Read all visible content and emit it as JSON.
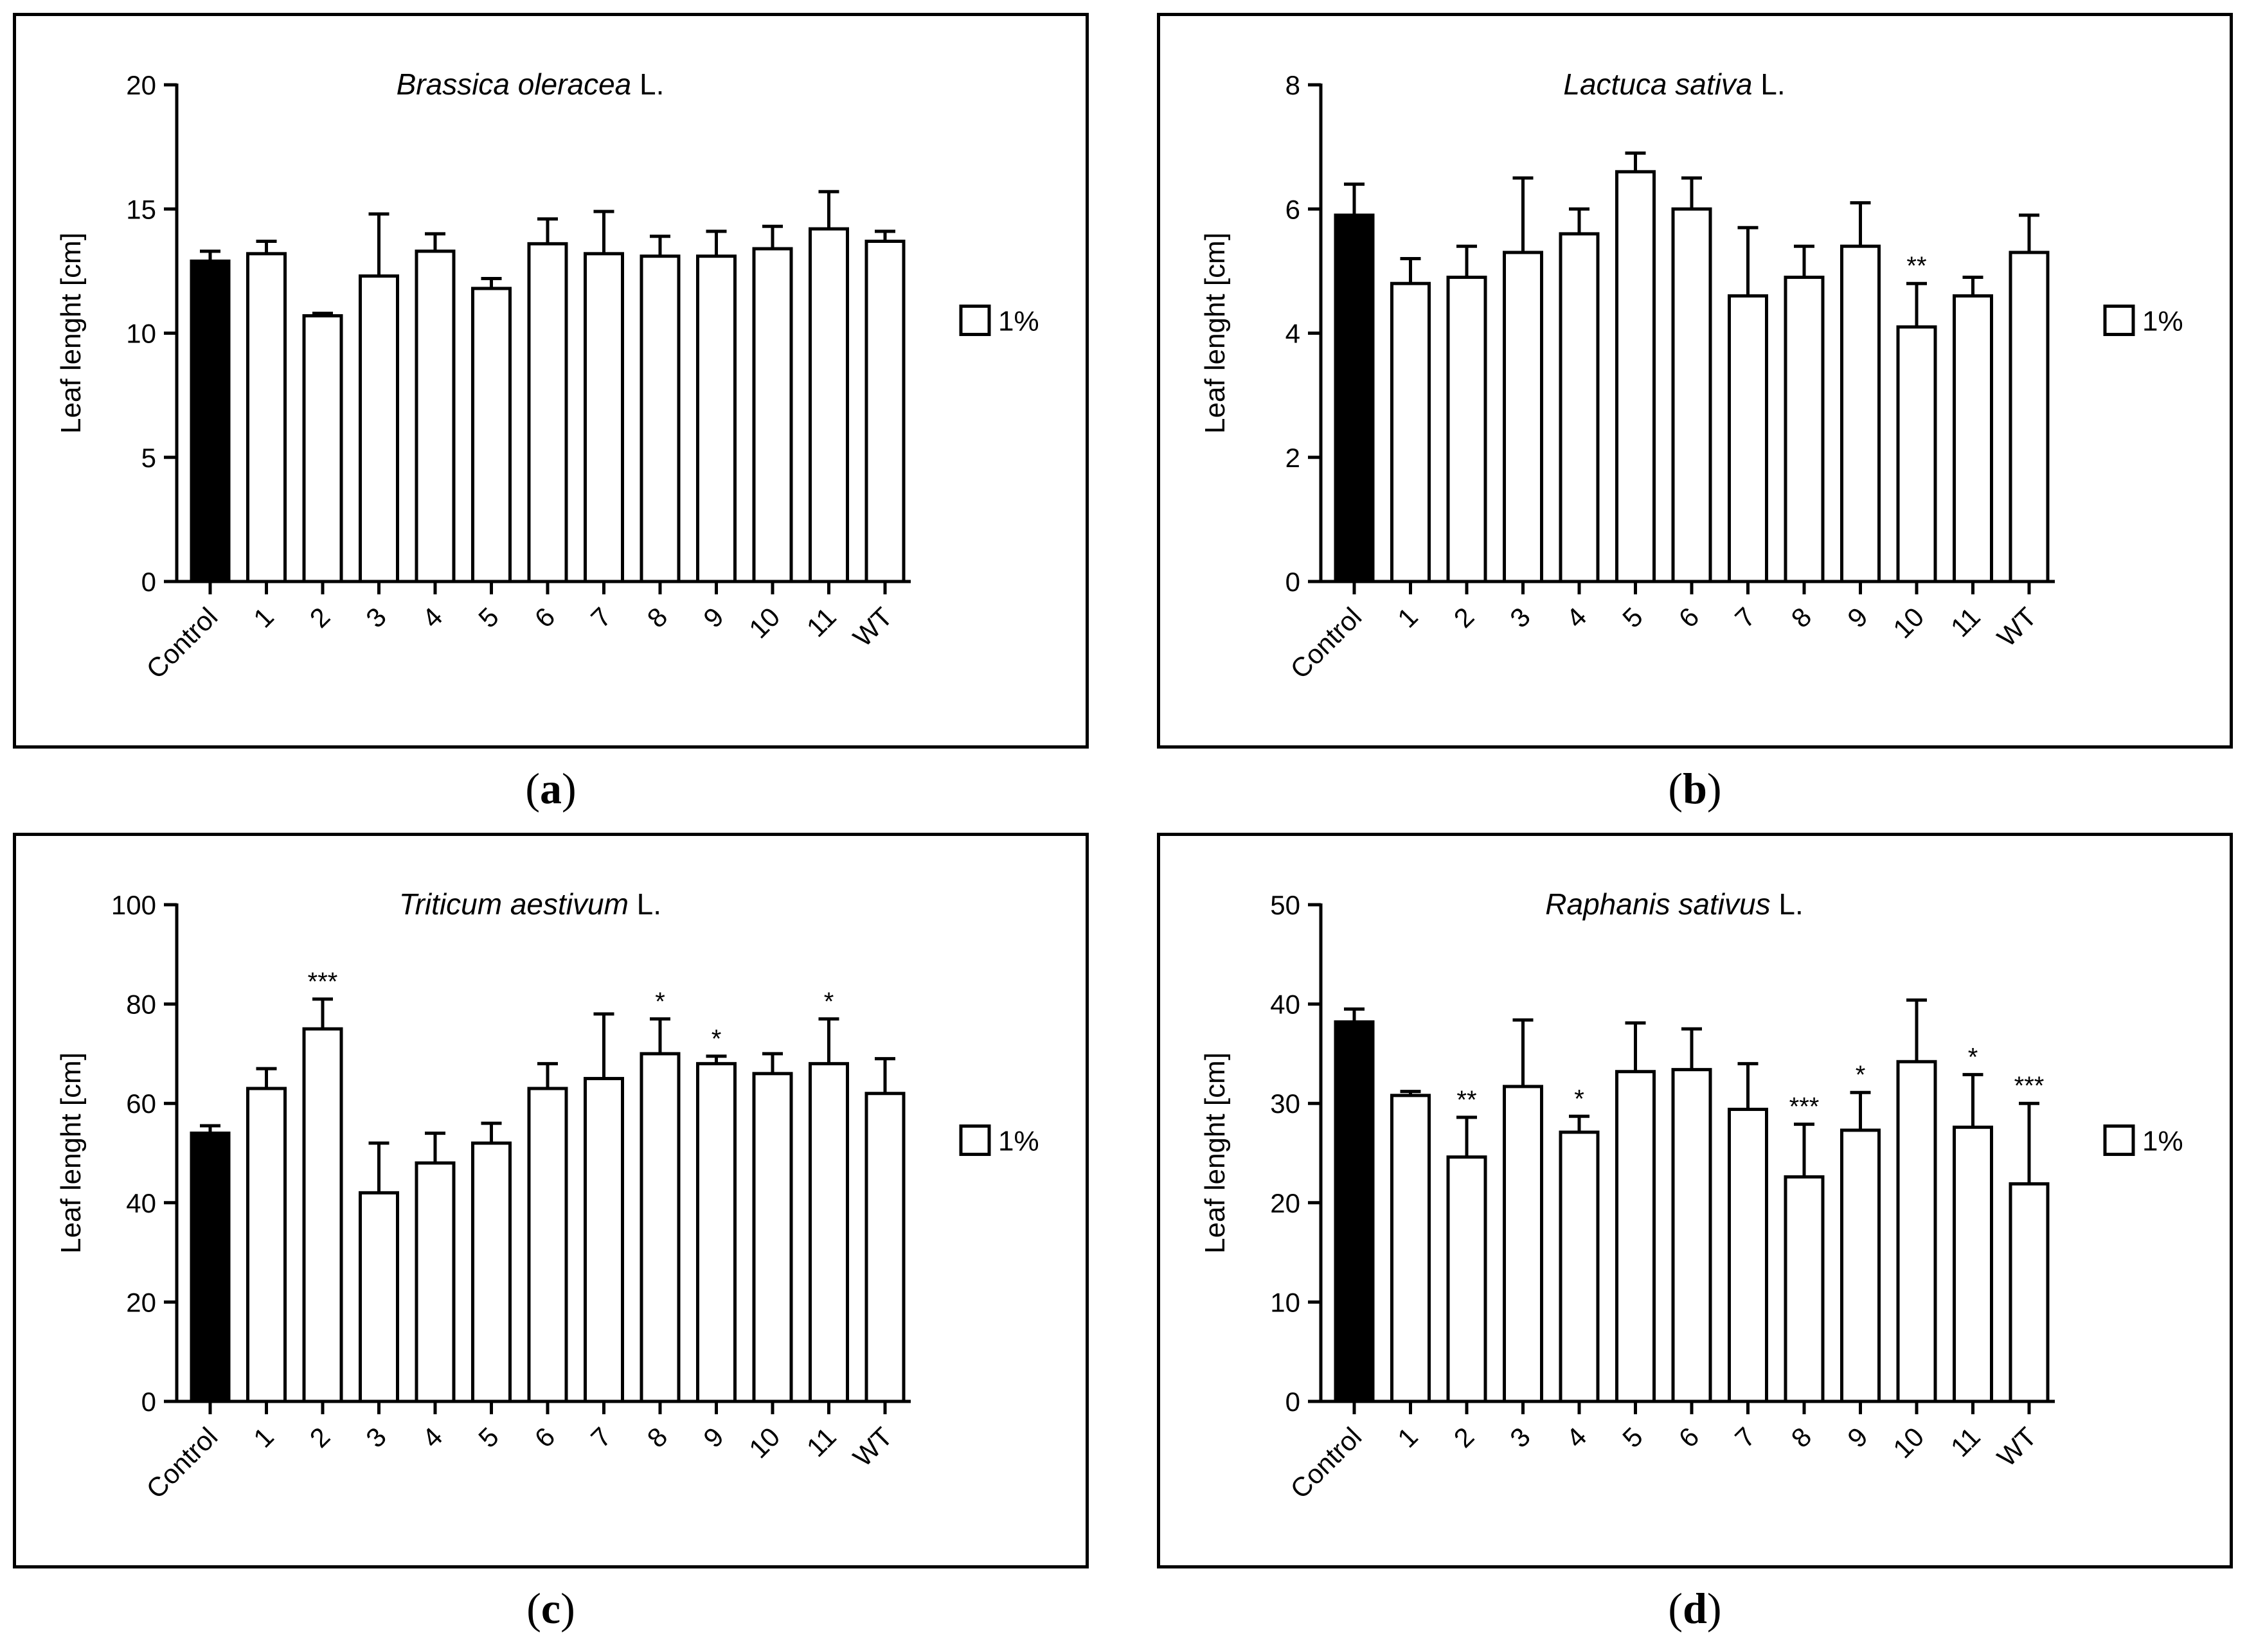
{
  "legend_label": "1%",
  "colors": {
    "control_fill": "#000000",
    "treatment_fill": "#ffffff",
    "stroke": "#000000"
  },
  "captions": [
    "a",
    "b",
    "c",
    "d"
  ],
  "chart_data": [
    {
      "type": "bar",
      "panel": "a",
      "title": "Brassica oleracea",
      "title_author": "L.",
      "ylabel": "Leaf lenght [cm]",
      "xlabel": "",
      "legend": "1%",
      "ylim": [
        0,
        20
      ],
      "yticks": [
        0,
        5,
        10,
        15,
        20
      ],
      "categories": [
        "Control",
        "1",
        "2",
        "3",
        "4",
        "5",
        "6",
        "7",
        "8",
        "9",
        "10",
        "11",
        "WT"
      ],
      "values": [
        12.9,
        13.2,
        10.7,
        12.3,
        13.3,
        11.8,
        13.6,
        13.2,
        13.1,
        13.1,
        13.4,
        14.2,
        13.7
      ],
      "errors": [
        0.4,
        0.5,
        0.1,
        2.5,
        0.7,
        0.4,
        1.0,
        1.7,
        0.8,
        1.0,
        0.9,
        1.5,
        0.4
      ],
      "significance": [
        "",
        "",
        "",
        "",
        "",
        "",
        "",
        "",
        "",
        "",
        "",
        "",
        ""
      ]
    },
    {
      "type": "bar",
      "panel": "b",
      "title": "Lactuca sativa",
      "title_author": "L.",
      "ylabel": "Leaf lenght [cm]",
      "xlabel": "",
      "legend": "1%",
      "ylim": [
        0,
        8
      ],
      "yticks": [
        0,
        2,
        4,
        6,
        8
      ],
      "categories": [
        "Control",
        "1",
        "2",
        "3",
        "4",
        "5",
        "6",
        "7",
        "8",
        "9",
        "10",
        "11",
        "WT"
      ],
      "values": [
        5.9,
        4.8,
        4.9,
        5.3,
        5.6,
        6.6,
        6.0,
        4.6,
        4.9,
        5.4,
        4.1,
        4.6,
        5.3
      ],
      "errors": [
        0.5,
        0.4,
        0.5,
        1.2,
        0.4,
        0.3,
        0.5,
        1.1,
        0.5,
        0.7,
        0.7,
        0.3,
        0.6
      ],
      "significance": [
        "",
        "",
        "",
        "",
        "",
        "",
        "",
        "",
        "",
        "",
        "**",
        "",
        ""
      ]
    },
    {
      "type": "bar",
      "panel": "c",
      "title": "Triticum aestivum",
      "title_author": "L.",
      "ylabel": "Leaf lenght [cm]",
      "xlabel": "",
      "legend": "1%",
      "ylim": [
        0,
        100
      ],
      "yticks": [
        0,
        20,
        40,
        60,
        80,
        100
      ],
      "categories": [
        "Control",
        "1",
        "2",
        "3",
        "4",
        "5",
        "6",
        "7",
        "8",
        "9",
        "10",
        "11",
        "WT"
      ],
      "values": [
        54,
        63,
        75,
        42,
        48,
        52,
        63,
        65,
        70,
        68,
        66,
        68,
        62
      ],
      "errors": [
        1.5,
        4,
        6,
        10,
        6,
        4,
        5,
        13,
        7,
        1.5,
        4,
        9,
        7
      ],
      "significance": [
        "",
        "",
        "***",
        "",
        "",
        "",
        "",
        "",
        "*",
        "*",
        "",
        "*",
        ""
      ]
    },
    {
      "type": "bar",
      "panel": "d",
      "title": "Raphanis sativus",
      "title_author": "L.",
      "ylabel": "Leaf lenght [cm]",
      "xlabel": "",
      "legend": "1%",
      "ylim": [
        0,
        50
      ],
      "yticks": [
        0,
        10,
        20,
        30,
        40,
        50
      ],
      "categories": [
        "Control",
        "1",
        "2",
        "3",
        "4",
        "5",
        "6",
        "7",
        "8",
        "9",
        "10",
        "11",
        "WT"
      ],
      "values": [
        38.2,
        30.8,
        24.6,
        31.7,
        27.1,
        33.2,
        33.4,
        29.4,
        22.6,
        27.3,
        34.2,
        27.6,
        21.9
      ],
      "errors": [
        1.3,
        0.4,
        4.0,
        6.7,
        1.6,
        4.9,
        4.1,
        4.6,
        5.3,
        3.8,
        6.2,
        5.3,
        8.1
      ],
      "significance": [
        "",
        "",
        "**",
        "",
        "*",
        "",
        "",
        "",
        "***",
        "*",
        "",
        "*",
        "***"
      ]
    }
  ]
}
